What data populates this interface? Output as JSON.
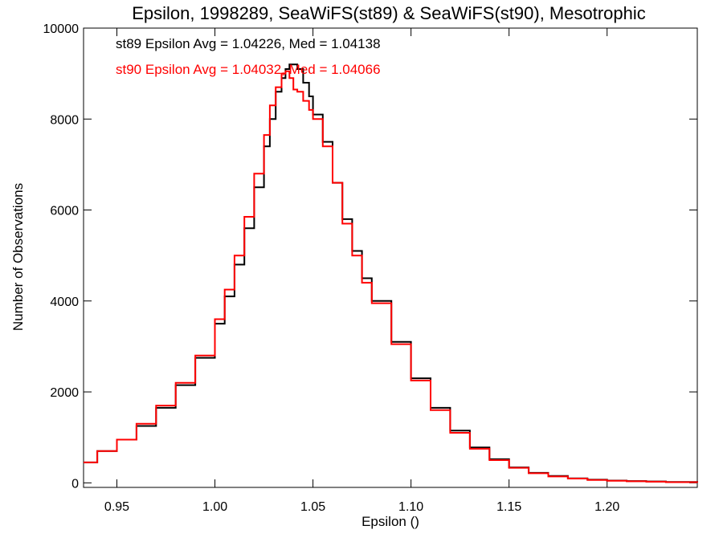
{
  "chart_data": {
    "type": "line",
    "title": "Epsilon, 1998289, SeaWiFS(st89) & SeaWiFS(st90), Mesotrophic",
    "xlabel": "Epsilon ()",
    "ylabel": "Number of Observations",
    "xlim": [
      0.933,
      1.246
    ],
    "ylim": [
      -100,
      10000
    ],
    "x_ticks": [
      0.95,
      1.0,
      1.05,
      1.1,
      1.15,
      1.2
    ],
    "x_tick_labels": [
      "0.95",
      "1.00",
      "1.05",
      "1.10",
      "1.15",
      "1.20"
    ],
    "y_ticks": [
      0,
      2000,
      4000,
      6000,
      8000,
      10000
    ],
    "y_tick_labels": [
      "0",
      "2000",
      "4000",
      "6000",
      "8000",
      "10000"
    ],
    "grid": false,
    "legend_position": "top-left",
    "annotations": [
      {
        "text": "st89 Epsilon Avg = 1.04226, Med = 1.04138",
        "color": "#000000"
      },
      {
        "text": "st90 Epsilon Avg = 1.04032, Med = 1.04066",
        "color": "#ff0000"
      }
    ],
    "series": [
      {
        "color": "#000000",
        "x": [
          0.933,
          0.94,
          0.95,
          0.96,
          0.97,
          0.98,
          0.99,
          1.0,
          1.005,
          1.01,
          1.015,
          1.02,
          1.025,
          1.028,
          1.031,
          1.034,
          1.036,
          1.038,
          1.04,
          1.042,
          1.045,
          1.048,
          1.05,
          1.055,
          1.06,
          1.065,
          1.07,
          1.075,
          1.08,
          1.09,
          1.1,
          1.11,
          1.12,
          1.13,
          1.14,
          1.15,
          1.16,
          1.17,
          1.18,
          1.19,
          1.2,
          1.21,
          1.22,
          1.23,
          1.246
        ],
        "y": [
          450,
          700,
          950,
          1250,
          1650,
          2150,
          2750,
          3500,
          4100,
          4800,
          5600,
          6500,
          7400,
          8000,
          8600,
          8900,
          9100,
          9200,
          9200,
          9100,
          8800,
          8500,
          8100,
          7500,
          6600,
          5800,
          5100,
          4500,
          4000,
          3100,
          2300,
          1650,
          1150,
          780,
          520,
          340,
          220,
          150,
          100,
          70,
          50,
          40,
          30,
          20,
          10
        ]
      },
      {
        "color": "#ff0000",
        "x": [
          0.933,
          0.94,
          0.95,
          0.96,
          0.97,
          0.98,
          0.99,
          1.0,
          1.005,
          1.01,
          1.015,
          1.02,
          1.025,
          1.028,
          1.031,
          1.034,
          1.036,
          1.038,
          1.04,
          1.042,
          1.045,
          1.048,
          1.05,
          1.055,
          1.06,
          1.065,
          1.07,
          1.075,
          1.08,
          1.09,
          1.1,
          1.11,
          1.12,
          1.13,
          1.14,
          1.15,
          1.16,
          1.17,
          1.18,
          1.19,
          1.2,
          1.21,
          1.22,
          1.23,
          1.246
        ],
        "y": [
          450,
          700,
          950,
          1300,
          1700,
          2200,
          2800,
          3600,
          4250,
          5000,
          5850,
          6800,
          7650,
          8300,
          8700,
          9000,
          9050,
          8900,
          8650,
          8600,
          8400,
          8200,
          8000,
          7400,
          6600,
          5700,
          5000,
          4400,
          3950,
          3050,
          2250,
          1600,
          1100,
          750,
          500,
          330,
          210,
          140,
          95,
          65,
          45,
          35,
          25,
          15,
          5
        ]
      }
    ]
  }
}
